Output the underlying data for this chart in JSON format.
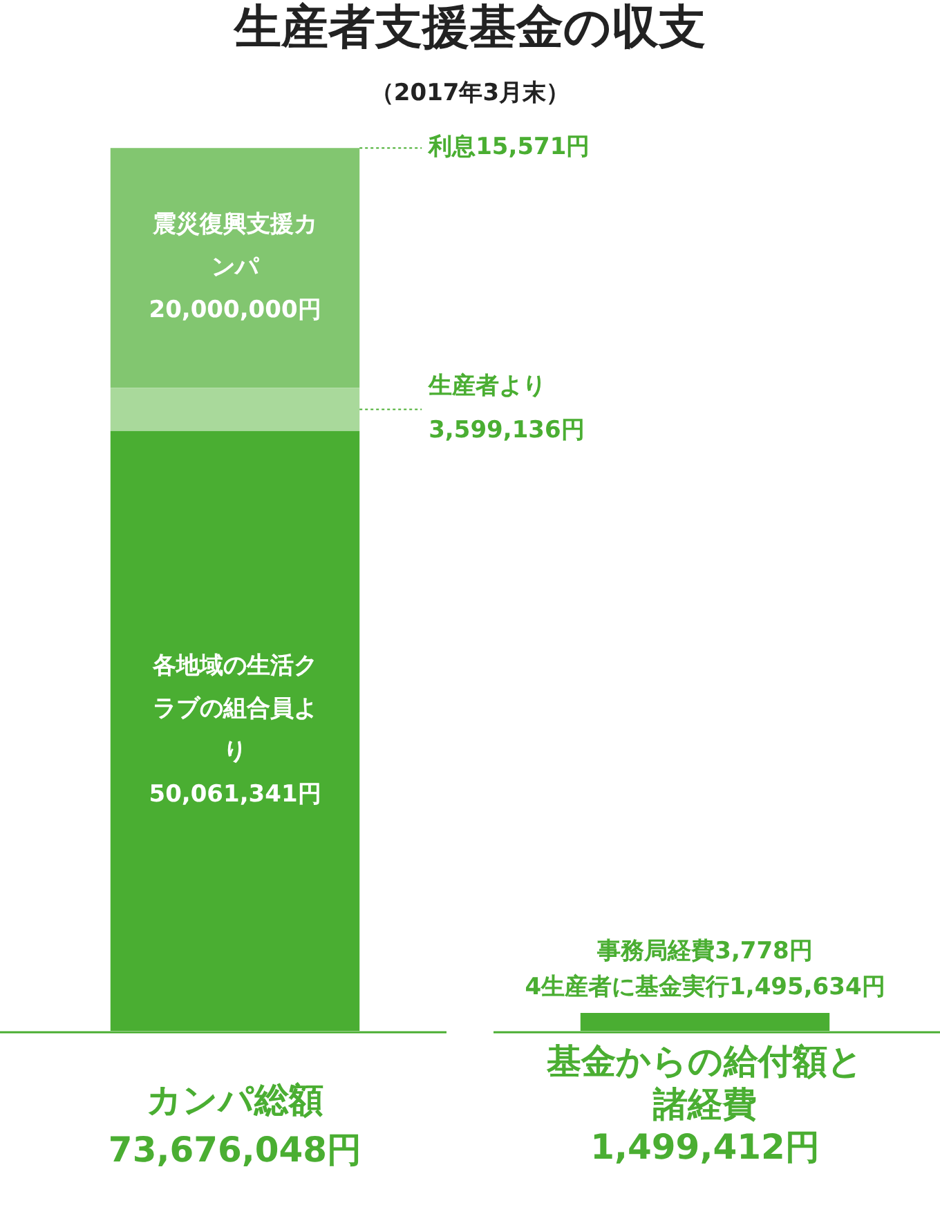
{
  "chart_data": {
    "type": "bar",
    "title": "生産者支援基金の収支",
    "subtitle": "（2017年3月末）",
    "stacked": true,
    "categories": [
      "カンパ総額",
      "基金からの給付額と諸経費"
    ],
    "totals": [
      "73,676,048円",
      "1,499,412円"
    ],
    "series": [
      {
        "color": "#4aae32",
        "values": [
          50061341,
          1495634
        ],
        "value_labels": [
          "各地域の生活クラブの組合員より50,061,341円",
          "4生産者に基金実行1,495,634円"
        ]
      },
      {
        "color": "#a9d99b",
        "values": [
          3599136,
          3778
        ],
        "value_labels": [
          "生産者より3,599,136円",
          "事務局経費3,778円"
        ]
      },
      {
        "color": "#82c670",
        "values": [
          20000000,
          null
        ],
        "value_labels": [
          "震災復興支援カンパ20,000,000円",
          null
        ]
      },
      {
        "color": "#a9d99b",
        "values": [
          15571,
          null
        ],
        "value_labels": [
          "利息15,571円",
          null
        ]
      }
    ]
  }
}
